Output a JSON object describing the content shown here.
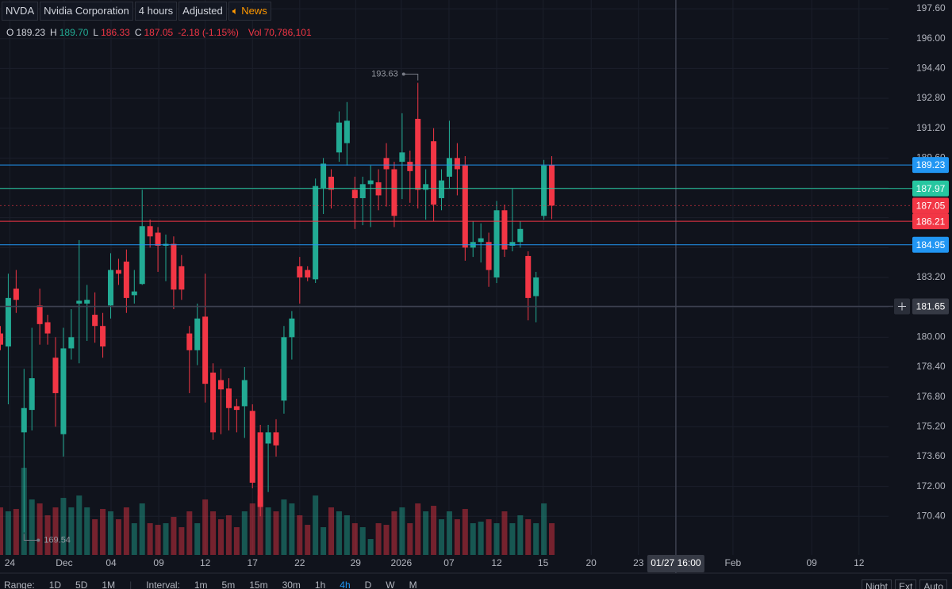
{
  "toolbar": {
    "symbol": "NVDA",
    "name": "Nvidia Corporation",
    "interval": "4 hours",
    "adjustment": "Adjusted",
    "news": "News"
  },
  "legend": [
    {
      "label": "O",
      "value": "189.23",
      "color": "#d1d4dc"
    },
    {
      "label": "H",
      "value": "189.70",
      "color": "#22ab94"
    },
    {
      "label": "L",
      "value": "186.33",
      "color": "#f23645"
    },
    {
      "label": "C",
      "value": "187.05",
      "color": "#f23645"
    }
  ],
  "change": "-2.18 (-1.15%)",
  "volume_label": "Vol",
  "volume": "70,786,101",
  "bottom_bar": {
    "range_label": "Range:",
    "ranges": [
      "1D",
      "5D",
      "1M"
    ],
    "interval_label": "Interval:",
    "intervals": [
      "1m",
      "5m",
      "15m",
      "30m",
      "1h",
      "4h",
      "D",
      "W",
      "M"
    ],
    "active_interval": 5,
    "toggles": [
      "Night",
      "Ext",
      "Auto"
    ]
  },
  "chart_data": {
    "type": "candlestick",
    "up_color": "#22ab94",
    "down_color": "#f23645",
    "grid": true,
    "open": [
      180.2,
      179.5,
      182.6,
      174.9,
      176.1,
      181.7,
      180.8,
      178.9,
      174.8,
      179.4,
      181.8,
      181.8,
      181.2,
      180.6,
      181.7,
      183.6,
      184.05,
      182.25,
      182.85,
      185.95,
      185.6,
      184.9,
      185.0,
      183.8,
      180.2,
      179.3,
      181.1,
      178.1,
      177.7,
      177.25,
      176.3,
      176.3,
      176.05,
      174.9,
      174.3,
      174.9,
      176.6,
      180.0,
      183.8,
      183.6,
      183.1,
      188.0,
      188.6,
      189.9,
      190.4,
      187.9,
      187.45,
      188.2,
      188.3,
      189.6,
      189.0,
      189.4,
      189.4,
      191.7,
      187.9,
      190.5,
      187.45,
      188.6,
      189.6,
      189.2,
      184.8,
      185.1,
      185.1,
      183.2,
      186.8,
      184.9,
      185.1,
      184.35,
      182.2,
      186.5,
      189.23
    ],
    "high": [
      180.6,
      183.4,
      183.6,
      178.3,
      180.5,
      182.6,
      181.2,
      180.0,
      180.5,
      181.5,
      185.2,
      182.8,
      182.4,
      181.3,
      184.5,
      184.2,
      184.7,
      183.6,
      187.9,
      186.3,
      185.9,
      185.5,
      185.4,
      184.4,
      180.6,
      181.8,
      183.4,
      178.6,
      178.3,
      177.8,
      176.7,
      178.4,
      176.4,
      175.3,
      175.3,
      175.6,
      180.6,
      181.4,
      184.3,
      183.8,
      188.5,
      189.6,
      189.0,
      192.1,
      192.6,
      188.6,
      188.6,
      189.2,
      189.0,
      190.4,
      189.4,
      192.0,
      190.0,
      193.63,
      189.0,
      191.2,
      189.0,
      191.6,
      190.4,
      189.7,
      186.2,
      186.1,
      185.6,
      187.3,
      187.1,
      187.95,
      186.2,
      184.6,
      183.5,
      189.5,
      189.7
    ],
    "low": [
      179.3,
      176.4,
      181.3,
      169.54,
      175.0,
      179.6,
      179.6,
      175.2,
      173.6,
      178.8,
      178.6,
      179.8,
      179.7,
      178.9,
      181.0,
      182.8,
      181.3,
      181.8,
      182.8,
      184.8,
      183.5,
      183.0,
      181.5,
      182.0,
      177.0,
      178.5,
      176.5,
      174.5,
      174.8,
      175.0,
      174.9,
      174.6,
      171.9,
      170.4,
      171.7,
      173.6,
      175.9,
      178.8,
      181.8,
      183.0,
      182.9,
      186.6,
      186.9,
      189.4,
      189.2,
      185.8,
      186.0,
      185.9,
      186.8,
      187.0,
      185.9,
      187.4,
      187.2,
      186.9,
      186.3,
      186.2,
      186.8,
      188.0,
      187.6,
      184.1,
      184.3,
      184.0,
      182.7,
      182.9,
      184.3,
      184.6,
      184.8,
      180.9,
      180.8,
      186.3,
      186.33
    ],
    "close": [
      179.6,
      182.1,
      182.0,
      176.2,
      177.8,
      180.7,
      180.2,
      177.0,
      179.4,
      180.0,
      181.95,
      182.0,
      180.6,
      179.5,
      183.6,
      183.4,
      182.1,
      182.45,
      185.95,
      185.4,
      184.9,
      185.0,
      182.55,
      182.55,
      179.3,
      181.0,
      177.5,
      174.9,
      177.2,
      176.2,
      176.1,
      177.7,
      172.2,
      170.9,
      174.9,
      174.2,
      180.0,
      181.0,
      183.2,
      183.2,
      188.1,
      189.3,
      187.9,
      191.5,
      191.6,
      187.45,
      188.2,
      188.4,
      187.6,
      189.0,
      186.5,
      189.9,
      188.9,
      187.9,
      188.2,
      187.1,
      188.4,
      189.6,
      189.0,
      184.8,
      185.1,
      185.3,
      183.6,
      186.8,
      184.7,
      185.1,
      185.8,
      182.1,
      183.2,
      189.2,
      187.05
    ],
    "volume": [
      106200000,
      97350000,
      102660000,
      194700000,
      123900000,
      115050000,
      88500000,
      106200000,
      127440000,
      106200000,
      132750000,
      106200000,
      79650000,
      102660000,
      97350000,
      79650000,
      106200000,
      70800000,
      115050000,
      70800000,
      67260000,
      70800000,
      84960000,
      61950000,
      97350000,
      70800000,
      123900000,
      97350000,
      79650000,
      88500000,
      61950000,
      97350000,
      115050000,
      132750000,
      106200000,
      97350000,
      123900000,
      115050000,
      88500000,
      67260000,
      132750000,
      61950000,
      106200000,
      97350000,
      88500000,
      70800000,
      61950000,
      35400000,
      70800000,
      67260000,
      97350000,
      106200000,
      70800000,
      115050000,
      97350000,
      109740000,
      79650000,
      97350000,
      79650000,
      102660000,
      70800000,
      74340000,
      79650000,
      70800000,
      97350000,
      70800000,
      88500000,
      79650000,
      70800000,
      115050000,
      70786101
    ],
    "xlim": [
      -0.05,
      112.75
    ],
    "ylim": [
      168.33,
      198.07
    ],
    "y2lim": [
      0,
      1240000000
    ],
    "xticks": [
      {
        "value": 1.2,
        "label": "24"
      },
      {
        "value": 8.1,
        "label": "Dec"
      },
      {
        "value": 14.05,
        "label": "04"
      },
      {
        "value": 20.1,
        "label": "09"
      },
      {
        "value": 26.0,
        "label": "12"
      },
      {
        "value": 32.0,
        "label": "17"
      },
      {
        "value": 38.0,
        "label": "22"
      },
      {
        "value": 45.1,
        "label": "29"
      },
      {
        "value": 50.9,
        "label": "2026"
      },
      {
        "value": 56.95,
        "label": "07"
      },
      {
        "value": 63.0,
        "label": "12"
      },
      {
        "value": 68.9,
        "label": "15"
      },
      {
        "value": 75.0,
        "label": "20"
      },
      {
        "value": 81.0,
        "label": "23"
      },
      {
        "value": 93.0,
        "label": "Feb"
      },
      {
        "value": 103.0,
        "label": "09"
      },
      {
        "value": 109.0,
        "label": "12"
      }
    ],
    "yticks": [
      {
        "value": 197.6,
        "label": "197.60"
      },
      {
        "value": 196.0,
        "label": "196.00"
      },
      {
        "value": 194.4,
        "label": "194.40"
      },
      {
        "value": 192.8,
        "label": "192.80"
      },
      {
        "value": 191.2,
        "label": "191.20"
      },
      {
        "value": 189.6,
        "label": "189.60"
      },
      {
        "value": 188.0,
        "label": "188.00"
      },
      {
        "value": 186.4,
        "label": "186.40"
      },
      {
        "value": 184.8,
        "label": "184.80"
      },
      {
        "value": 183.2,
        "label": "183.20"
      },
      {
        "value": 181.6,
        "label": "181.60"
      },
      {
        "value": 180.0,
        "label": "180.00"
      },
      {
        "value": 178.4,
        "label": "178.40"
      },
      {
        "value": 176.8,
        "label": "176.80"
      },
      {
        "value": 175.2,
        "label": "175.20"
      },
      {
        "value": 173.6,
        "label": "173.60"
      },
      {
        "value": 172.0,
        "label": "172.00"
      },
      {
        "value": 170.4,
        "label": "170.40"
      }
    ],
    "price_lines": [
      {
        "value": 189.23,
        "color": "#2196f3"
      },
      {
        "value": 187.97,
        "color": "#26c6a0"
      },
      {
        "value": 187.05,
        "color": "#f23645",
        "dashed": true
      },
      {
        "value": 186.21,
        "color": "#f23645"
      },
      {
        "value": 184.95,
        "color": "#2196f3"
      }
    ],
    "crosshair": {
      "x": 85.75,
      "x_label": "01/27 16:00",
      "y": 181.65
    }
  }
}
